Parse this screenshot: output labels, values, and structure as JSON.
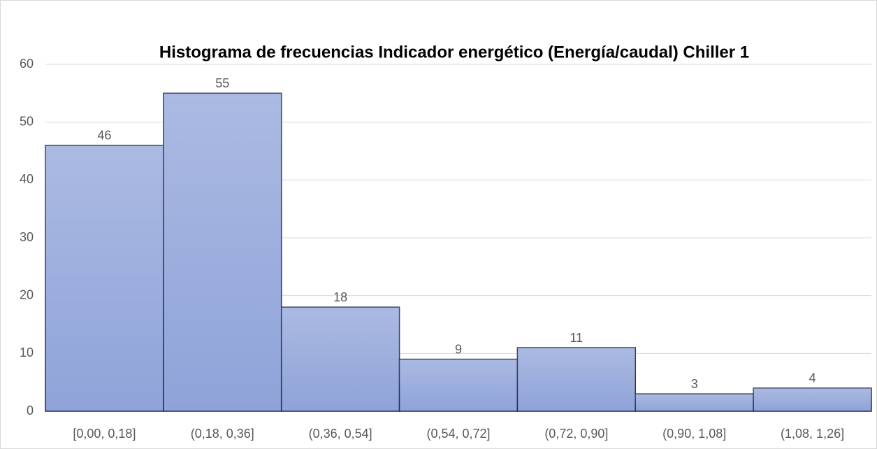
{
  "chart_data": {
    "type": "bar",
    "title": "Histograma de frecuencias Indicador energético (Energía/caudal)  Chiller  1",
    "categories": [
      "[0,00, 0,18]",
      "(0,18, 0,36]",
      "(0,36, 0,54]",
      "(0,54, 0,72]",
      "(0,72, 0,90]",
      "(0,90, 1,08]",
      "(1,08, 1,26]"
    ],
    "values": [
      46,
      55,
      18,
      9,
      11,
      3,
      4
    ],
    "color": "#8fa3d9",
    "ylim": [
      0,
      60
    ],
    "yticks": [
      0,
      10,
      20,
      30,
      40,
      50,
      60
    ],
    "grid": true
  }
}
